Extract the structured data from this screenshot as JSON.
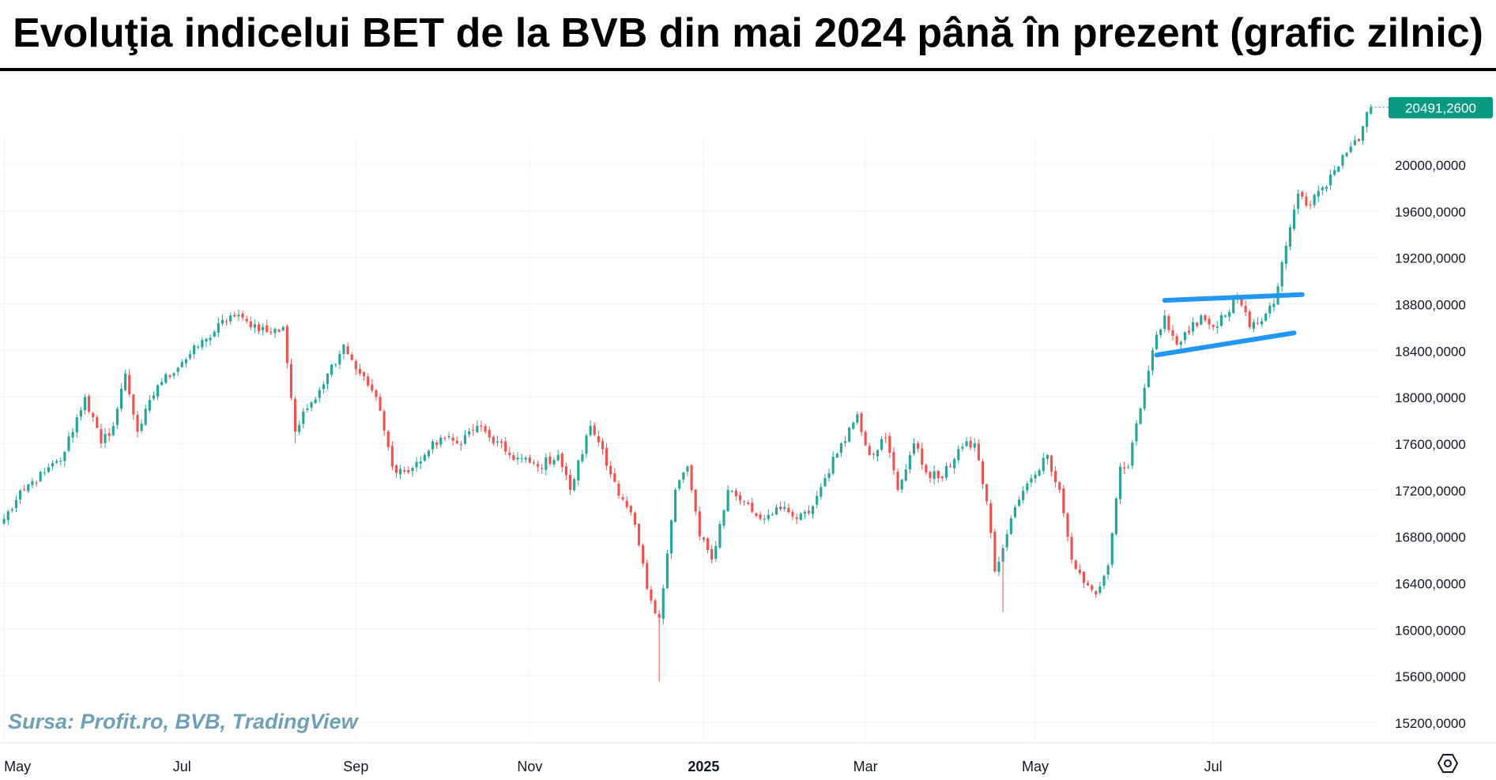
{
  "title": "Evoluţia indicelui BET de la BVB din mai 2024 până în prezent (grafic zilnic)",
  "source": "Sursa: Profit.ro, BVB, TradingView",
  "colors": {
    "up": "#26a69a",
    "down": "#ef5350",
    "trendline": "#2196f3",
    "price_badge": "#089981",
    "grid": "#f0f3fa",
    "axis_text": "#131722"
  },
  "chart_data": {
    "type": "candlestick",
    "title": "Evoluţia indicelui BET de la BVB din mai 2024 până în prezent (grafic zilnic)",
    "xlabel": "",
    "ylabel": "",
    "y_range": [
      14950,
      20950
    ],
    "y_ticks": [
      "15200,0000",
      "15600,0000",
      "16000,0000",
      "16400,0000",
      "16800,0000",
      "17200,0000",
      "17600,0000",
      "18000,0000",
      "18400,0000",
      "18800,0000",
      "19200,0000",
      "19600,0000",
      "20000,0000"
    ],
    "y_tick_values": [
      15200,
      15600,
      16000,
      16400,
      16800,
      17200,
      17600,
      18000,
      18400,
      18800,
      19200,
      19600,
      20000
    ],
    "x_ticks": [
      "May",
      "Jul",
      "Sep",
      "Nov",
      "2025",
      "Mar",
      "May",
      "Jul"
    ],
    "x_tick_indices": [
      0,
      44,
      87,
      130,
      173,
      213,
      255,
      299
    ],
    "last_price": "20491,2600",
    "grid": true,
    "trendlines": [
      {
        "i1": 287,
        "v1": 18830,
        "i2": 321,
        "v2": 18880
      },
      {
        "i1": 285,
        "v1": 18360,
        "i2": 319,
        "v2": 18550
      }
    ],
    "anchors": [
      [
        0,
        16950
      ],
      [
        5,
        17200
      ],
      [
        10,
        17350
      ],
      [
        14,
        17450
      ],
      [
        20,
        18000
      ],
      [
        24,
        17600
      ],
      [
        27,
        17750
      ],
      [
        30,
        18200
      ],
      [
        33,
        17700
      ],
      [
        38,
        18100
      ],
      [
        44,
        18300
      ],
      [
        50,
        18500
      ],
      [
        56,
        18700
      ],
      [
        60,
        18650
      ],
      [
        66,
        18550
      ],
      [
        69,
        18600
      ],
      [
        72,
        17700
      ],
      [
        75,
        17900
      ],
      [
        80,
        18200
      ],
      [
        84,
        18450
      ],
      [
        88,
        18200
      ],
      [
        92,
        18000
      ],
      [
        96,
        17400
      ],
      [
        100,
        17350
      ],
      [
        104,
        17500
      ],
      [
        108,
        17650
      ],
      [
        112,
        17600
      ],
      [
        117,
        17750
      ],
      [
        120,
        17650
      ],
      [
        125,
        17500
      ],
      [
        132,
        17400
      ],
      [
        137,
        17500
      ],
      [
        140,
        17200
      ],
      [
        145,
        17750
      ],
      [
        148,
        17550
      ],
      [
        152,
        17150
      ],
      [
        156,
        16900
      ],
      [
        159,
        16350
      ],
      [
        162,
        16100
      ],
      [
        166,
        17200
      ],
      [
        169,
        17400
      ],
      [
        172,
        16800
      ],
      [
        175,
        16600
      ],
      [
        179,
        17200
      ],
      [
        183,
        17100
      ],
      [
        187,
        16950
      ],
      [
        191,
        17050
      ],
      [
        196,
        16950
      ],
      [
        199,
        17000
      ],
      [
        203,
        17300
      ],
      [
        207,
        17600
      ],
      [
        211,
        17850
      ],
      [
        214,
        17500
      ],
      [
        218,
        17650
      ],
      [
        221,
        17200
      ],
      [
        225,
        17600
      ],
      [
        228,
        17350
      ],
      [
        232,
        17300
      ],
      [
        236,
        17550
      ],
      [
        240,
        17600
      ],
      [
        243,
        17100
      ],
      [
        245,
        16500
      ],
      [
        247,
        16700
      ],
      [
        250,
        17050
      ],
      [
        254,
        17300
      ],
      [
        258,
        17500
      ],
      [
        261,
        17200
      ],
      [
        264,
        16600
      ],
      [
        267,
        16400
      ],
      [
        270,
        16300
      ],
      [
        273,
        16550
      ],
      [
        276,
        17400
      ],
      [
        278,
        17400
      ],
      [
        281,
        17900
      ],
      [
        284,
        18400
      ],
      [
        287,
        18700
      ],
      [
        290,
        18450
      ],
      [
        293,
        18550
      ],
      [
        296,
        18700
      ],
      [
        299,
        18600
      ],
      [
        302,
        18700
      ],
      [
        305,
        18850
      ],
      [
        308,
        18600
      ],
      [
        311,
        18650
      ],
      [
        314,
        18800
      ],
      [
        317,
        19300
      ],
      [
        320,
        19750
      ],
      [
        323,
        19650
      ],
      [
        326,
        19800
      ],
      [
        329,
        19950
      ],
      [
        332,
        20100
      ],
      [
        335,
        20200
      ],
      [
        337,
        20450
      ],
      [
        338,
        20491
      ]
    ]
  }
}
